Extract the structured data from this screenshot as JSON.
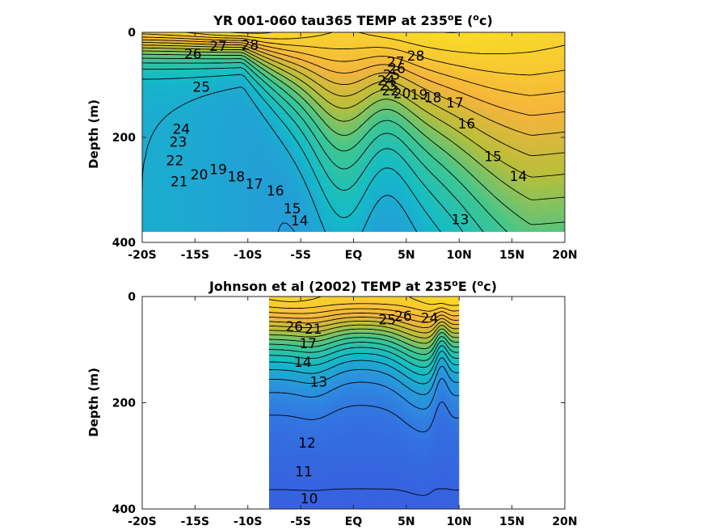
{
  "chart_data": [
    {
      "type": "heatmap",
      "title": "YR 001-060 tau365 TEMP at 235",
      "title_degree": "o",
      "title_unit_prefix": "E (",
      "title_unit_sup": "o",
      "title_unit_suffix": "c)",
      "xlabel": "",
      "ylabel": "Depth (m)",
      "xlim": [
        -20,
        20
      ],
      "ylim": [
        400,
        0
      ],
      "x_ticks": [
        "-20S",
        "-15S",
        "-10S",
        "-5S",
        "EQ",
        "5N",
        "10N",
        "15N",
        "20N"
      ],
      "y_ticks": [
        "0",
        "200",
        "400"
      ],
      "data_extent": {
        "lat": [
          -20,
          20
        ],
        "depth": [
          0,
          380
        ]
      },
      "colormap": [
        "#3b4fe0",
        "#2d8de0",
        "#13bcc7",
        "#3fc690",
        "#b7bf3a",
        "#f5b43c",
        "#f8d02e",
        "#f7f014"
      ],
      "color_range_c": [
        9,
        30
      ],
      "contour_labels": [
        {
          "value": 28,
          "lat": -9.8,
          "depth": 25
        },
        {
          "value": 27,
          "lat": -12.8,
          "depth": 28
        },
        {
          "value": 26,
          "lat": -15.2,
          "depth": 42
        },
        {
          "value": 25,
          "lat": -14.4,
          "depth": 105
        },
        {
          "value": 24,
          "lat": -16.3,
          "depth": 185
        },
        {
          "value": 23,
          "lat": -16.6,
          "depth": 210
        },
        {
          "value": 22,
          "lat": -16.9,
          "depth": 245
        },
        {
          "value": 21,
          "lat": -16.5,
          "depth": 285
        },
        {
          "value": 20,
          "lat": -14.6,
          "depth": 272
        },
        {
          "value": 19,
          "lat": -12.8,
          "depth": 262
        },
        {
          "value": 18,
          "lat": -11.1,
          "depth": 276
        },
        {
          "value": 17,
          "lat": -9.4,
          "depth": 290
        },
        {
          "value": 16,
          "lat": -7.4,
          "depth": 303
        },
        {
          "value": 15,
          "lat": -5.8,
          "depth": 337
        },
        {
          "value": 14,
          "lat": -5.1,
          "depth": 360
        },
        {
          "value": 28,
          "lat": 5.9,
          "depth": 46
        },
        {
          "value": 27,
          "lat": 4.0,
          "depth": 58
        },
        {
          "value": 26,
          "lat": 4.1,
          "depth": 70
        },
        {
          "value": 25,
          "lat": 3.6,
          "depth": 82
        },
        {
          "value": 24,
          "lat": 3.1,
          "depth": 93
        },
        {
          "value": 23,
          "lat": 3.3,
          "depth": 102
        },
        {
          "value": 22,
          "lat": 3.5,
          "depth": 112
        },
        {
          "value": 20,
          "lat": 4.6,
          "depth": 118
        },
        {
          "value": 19,
          "lat": 6.2,
          "depth": 120
        },
        {
          "value": 18,
          "lat": 7.5,
          "depth": 125
        },
        {
          "value": 17,
          "lat": 9.6,
          "depth": 135
        },
        {
          "value": 16,
          "lat": 10.7,
          "depth": 175
        },
        {
          "value": 15,
          "lat": 13.2,
          "depth": 238
        },
        {
          "value": 14,
          "lat": 15.6,
          "depth": 275
        },
        {
          "value": 13,
          "lat": 10.1,
          "depth": 358
        }
      ]
    },
    {
      "type": "heatmap",
      "title": "Johnson et al (2002) TEMP at 235",
      "title_degree": "o",
      "title_unit_prefix": "E (",
      "title_unit_sup": "o",
      "title_unit_suffix": "c)",
      "xlabel": "",
      "ylabel": "Depth (m)",
      "xlim": [
        -20,
        20
      ],
      "ylim": [
        400,
        0
      ],
      "x_ticks": [
        "-20S",
        "-15S",
        "-10S",
        "-5S",
        "EQ",
        "5N",
        "10N",
        "15N",
        "20N"
      ],
      "y_ticks": [
        "0",
        "200",
        "400"
      ],
      "data_extent": {
        "lat": [
          -8,
          10
        ],
        "depth": [
          0,
          400
        ]
      },
      "colormap": [
        "#3b4fe0",
        "#2d8de0",
        "#13bcc7",
        "#3fc690",
        "#b7bf3a",
        "#f5b43c",
        "#f8d02e",
        "#f7f014"
      ],
      "color_range_c": [
        9,
        30
      ],
      "contour_labels": [
        {
          "value": 26,
          "lat": -5.6,
          "depth": 58
        },
        {
          "value": 25,
          "lat": 3.2,
          "depth": 45
        },
        {
          "value": 26,
          "lat": 4.7,
          "depth": 38
        },
        {
          "value": 24,
          "lat": 7.2,
          "depth": 42
        },
        {
          "value": 21,
          "lat": -3.8,
          "depth": 62
        },
        {
          "value": 17,
          "lat": -4.3,
          "depth": 90
        },
        {
          "value": 14,
          "lat": -4.8,
          "depth": 125
        },
        {
          "value": 13,
          "lat": -3.3,
          "depth": 162
        },
        {
          "value": 12,
          "lat": -4.4,
          "depth": 277
        },
        {
          "value": 11,
          "lat": -4.7,
          "depth": 331
        },
        {
          "value": 10,
          "lat": -4.2,
          "depth": 382
        }
      ]
    }
  ]
}
